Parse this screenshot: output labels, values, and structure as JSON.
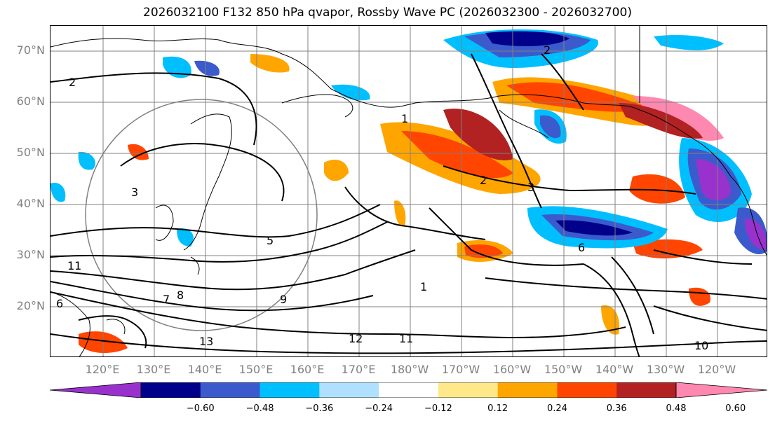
{
  "title": "2026032100 F132 850 hPa qvapor, Rossby Wave PC (2026032300 - 2026032700)",
  "map": {
    "lat_labels": [
      "70°N",
      "60°N",
      "50°N",
      "40°N",
      "30°N",
      "20°N"
    ],
    "lon_labels": [
      "120°E",
      "130°E",
      "140°E",
      "150°E",
      "160°E",
      "170°E",
      "180°W",
      "170°W",
      "160°W",
      "150°W",
      "140°W",
      "130°W",
      "120°W"
    ],
    "contour_labels": [
      "2",
      "1",
      "3",
      "2",
      "2",
      "3",
      "5",
      "1",
      "6",
      "9",
      "13",
      "12",
      "11",
      "10",
      "11",
      "7",
      "8",
      "6"
    ],
    "grid_color": "#808080",
    "coastline_color": "#000000"
  },
  "colorbar": {
    "colors": [
      "#9932cc",
      "#00008b",
      "#3b5bcd",
      "#00bfff",
      "#b0e0ff",
      "#ffffff",
      "#ffe88a",
      "#ffa500",
      "#ff4500",
      "#b22222",
      "#ff88b0"
    ],
    "ticks": [
      "−0.60",
      "−0.48",
      "−0.36",
      "−0.24",
      "−0.12",
      "0.12",
      "0.24",
      "0.36",
      "0.48",
      "0.60"
    ]
  }
}
